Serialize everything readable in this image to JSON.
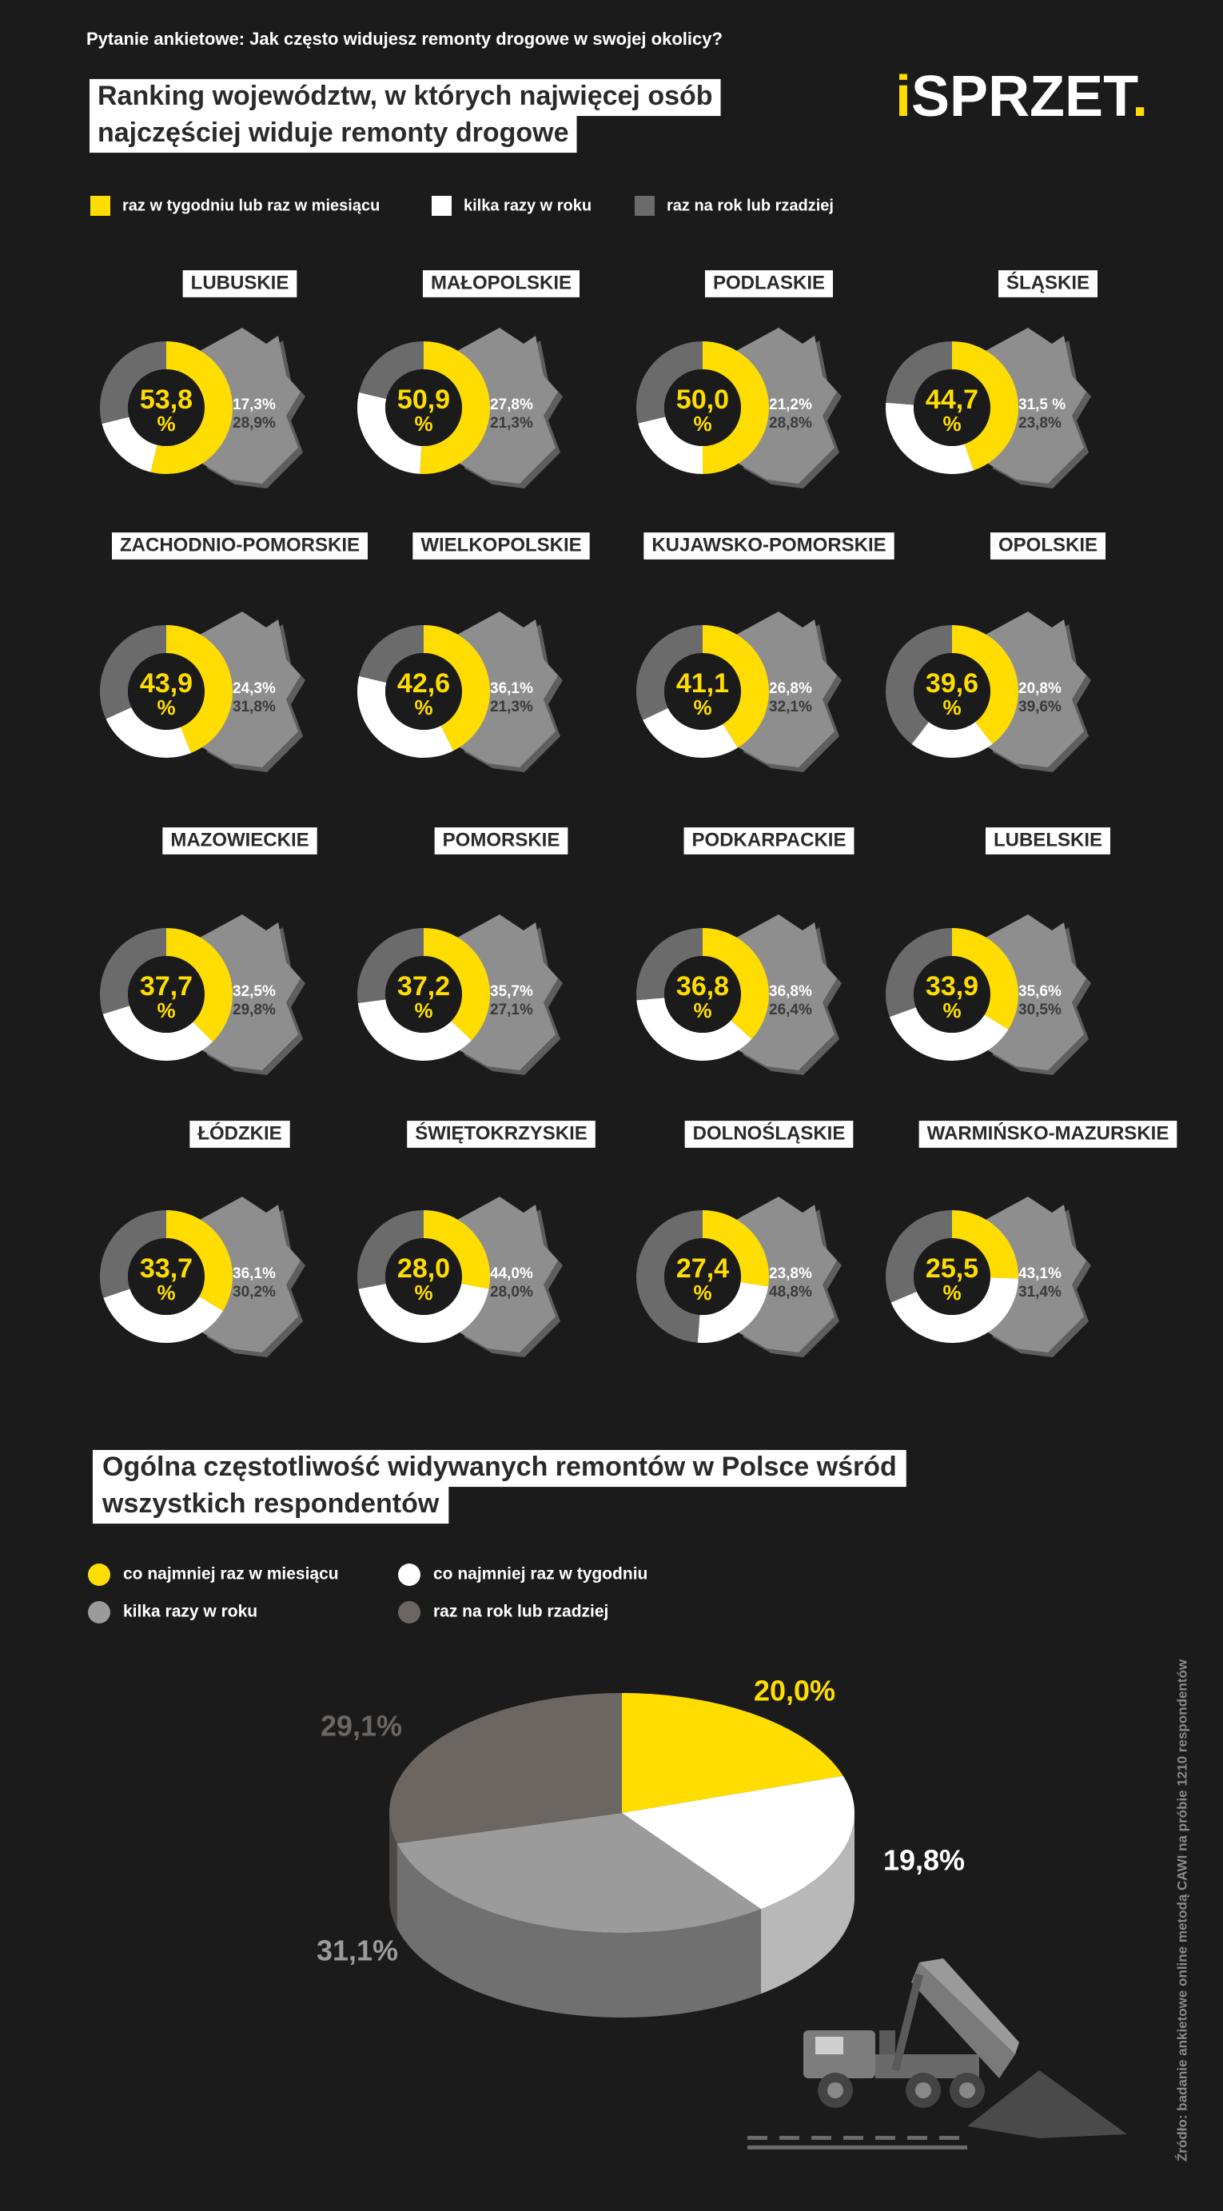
{
  "header": {
    "question": "Pytanie ankietowe: Jak często widujesz remonty drogowe w swojej okolicy?",
    "title_lines": [
      "Ranking województw, w których najwięcej osób",
      "najczęściej widuje remonty drogowe"
    ],
    "logo": {
      "lead": "i",
      "main": "SPRZET",
      "tail": "."
    }
  },
  "ranking_legend": [
    {
      "name": "raz w tygodniu lub raz w miesiącu",
      "color": "#ffdd00"
    },
    {
      "name": "kilka razy w roku",
      "color": "#ffffff"
    },
    {
      "name": "raz na rok lub rzadziej",
      "color": "#6b6b6b"
    }
  ],
  "chart_data": [
    {
      "type": "donut",
      "title": "LUBUSKIE",
      "values": [
        53.8,
        17.3,
        28.9
      ],
      "value_labels": [
        "53,8",
        "17,3%",
        "28,9%"
      ],
      "unit": "%"
    },
    {
      "type": "donut",
      "title": "MAŁOPOLSKIE",
      "values": [
        50.9,
        27.8,
        21.3
      ],
      "value_labels": [
        "50,9",
        "27,8%",
        "21,3%"
      ],
      "unit": "%"
    },
    {
      "type": "donut",
      "title": "PODLASKIE",
      "values": [
        50.0,
        21.2,
        28.8
      ],
      "value_labels": [
        "50,0",
        "21,2%",
        "28,8%"
      ],
      "unit": "%"
    },
    {
      "type": "donut",
      "title": "ŚLĄSKIE",
      "values": [
        44.7,
        31.5,
        23.8
      ],
      "value_labels": [
        "44,7",
        "31,5 %",
        "23,8%"
      ],
      "unit": "%"
    },
    {
      "type": "donut",
      "title": "ZACHODNIO-POMORSKIE",
      "values": [
        43.9,
        24.3,
        31.8
      ],
      "value_labels": [
        "43,9",
        "24,3%",
        "31,8%"
      ],
      "unit": "%"
    },
    {
      "type": "donut",
      "title": "WIELKOPOLSKIE",
      "values": [
        42.6,
        36.1,
        21.3
      ],
      "value_labels": [
        "42,6",
        "36,1%",
        "21,3%"
      ],
      "unit": "%"
    },
    {
      "type": "donut",
      "title": "KUJAWSKO-POMORSKIE",
      "values": [
        41.1,
        26.8,
        32.1
      ],
      "value_labels": [
        "41,1",
        "26,8%",
        "32,1%"
      ],
      "unit": "%"
    },
    {
      "type": "donut",
      "title": "OPOLSKIE",
      "values": [
        39.6,
        20.8,
        39.6
      ],
      "value_labels": [
        "39,6",
        "20,8%",
        "39,6%"
      ],
      "unit": "%"
    },
    {
      "type": "donut",
      "title": "MAZOWIECKIE",
      "values": [
        37.7,
        32.5,
        29.8
      ],
      "value_labels": [
        "37,7",
        "32,5%",
        "29,8%"
      ],
      "unit": "%"
    },
    {
      "type": "donut",
      "title": "POMORSKIE",
      "values": [
        37.2,
        35.7,
        27.1
      ],
      "value_labels": [
        "37,2",
        "35,7%",
        "27,1%"
      ],
      "unit": "%"
    },
    {
      "type": "donut",
      "title": "PODKARPACKIE",
      "values": [
        36.8,
        36.8,
        26.4
      ],
      "value_labels": [
        "36,8",
        "36,8%",
        "26,4%"
      ],
      "unit": "%"
    },
    {
      "type": "donut",
      "title": "LUBELSKIE",
      "values": [
        33.9,
        35.6,
        30.5
      ],
      "value_labels": [
        "33,9",
        "35,6%",
        "30,5%"
      ],
      "unit": "%"
    },
    {
      "type": "donut",
      "title": "ŁÓDZKIE",
      "values": [
        33.7,
        36.1,
        30.2
      ],
      "value_labels": [
        "33,7",
        "36,1%",
        "30,2%"
      ],
      "unit": "%"
    },
    {
      "type": "donut",
      "title": "ŚWIĘTOKRZYSKIE",
      "values": [
        28.0,
        44.0,
        28.0
      ],
      "value_labels": [
        "28,0",
        "44,0%",
        "28,0%"
      ],
      "unit": "%"
    },
    {
      "type": "donut",
      "title": "DOLNOŚLĄSKIE",
      "values": [
        27.4,
        23.8,
        48.8
      ],
      "value_labels": [
        "27,4",
        "23,8%",
        "48,8%"
      ],
      "unit": "%"
    },
    {
      "type": "donut",
      "title": "WARMIŃSKO-MAZURSKIE",
      "values": [
        25.5,
        43.1,
        31.4
      ],
      "value_labels": [
        "25,5",
        "43,1%",
        "31,4%"
      ],
      "unit": "%"
    },
    {
      "type": "pie3d",
      "title_lines": [
        "Ogólna częstotliwość widywanych remontów w Polsce wśród",
        "wszystkich respondentów"
      ],
      "categories": [
        "co najmniej raz w miesiącu",
        "co najmniej raz w tygodniu",
        "kilka razy w roku",
        "raz na rok lub rzadziej"
      ],
      "colors": [
        "#ffdd00",
        "#ffffff",
        "#9b9b9b",
        "#6b6661"
      ],
      "values": [
        20.0,
        19.8,
        31.1,
        29.1
      ],
      "value_labels": [
        "20,0%",
        "19,8%",
        "31,1%",
        "29,1%"
      ]
    }
  ],
  "source": "Źródło: badanie ankietowe online metodą CAWI na próbie 1210 respondentów"
}
